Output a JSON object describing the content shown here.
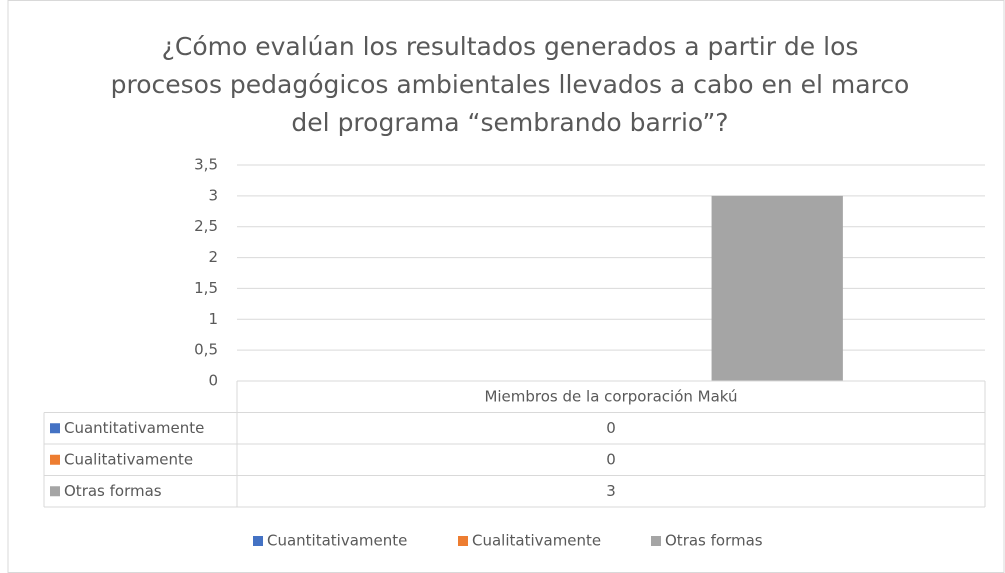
{
  "chart_data": {
    "type": "bar",
    "title": "¿Cómo evalúan los resultados generados a partir de los procesos pedagógicos ambientales llevados a cabo en el marco del programa “sembrando barrio”?",
    "categories": [
      "Miembros de la corporación Makú"
    ],
    "series": [
      {
        "name": "Cuantitativamente",
        "color": "#4472c4",
        "values": [
          0
        ]
      },
      {
        "name": "Cualitativamente",
        "color": "#ed7d31",
        "values": [
          0
        ]
      },
      {
        "name": "Otras formas",
        "color": "#a5a5a5",
        "values": [
          3
        ]
      }
    ],
    "ylim": [
      0,
      3.5
    ],
    "yticks": [
      0,
      {
        "value": 0.5,
        "label": "0,5"
      },
      1,
      {
        "value": 1.5,
        "label": "1,5"
      },
      2,
      {
        "value": 2.5,
        "label": "2,5"
      },
      3,
      {
        "value": 3.5,
        "label": "3,5"
      }
    ],
    "grid": true,
    "data_table": true,
    "legend": "bottom"
  }
}
